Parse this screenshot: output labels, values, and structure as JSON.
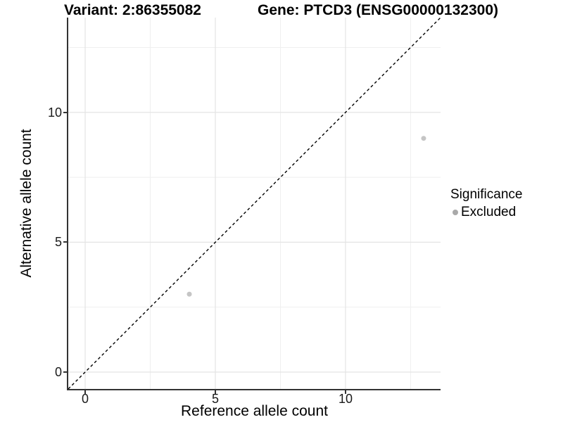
{
  "header": {
    "variant_title": "Variant: 2:86355082",
    "gene_title": "Gene: PTCD3 (ENSG00000132300)"
  },
  "legend": {
    "title": "Significance",
    "items": [
      {
        "label": "Excluded",
        "key_color": "#a9a9a9"
      }
    ]
  },
  "axes": {
    "x_title": "Reference allele count",
    "y_title": "Alternative allele count"
  },
  "colors": {
    "point": "#c5c5c5",
    "major_grid": "#e4e4e4",
    "minor_grid": "#efefef",
    "axis_line": "#333333",
    "identity_line": "#000000"
  },
  "chart_data": {
    "type": "scatter",
    "title": "Variant: 2:86355082  |  Gene: PTCD3 (ENSG00000132300)",
    "xlabel": "Reference allele count",
    "ylabel": "Alternative allele count",
    "xlim": [
      -0.65,
      13.65
    ],
    "ylim": [
      -0.65,
      13.65
    ],
    "x_ticks": [
      0,
      5,
      10
    ],
    "y_ticks": [
      0,
      5,
      10
    ],
    "x_minor_ticks": [
      2.5,
      7.5,
      12.5
    ],
    "y_minor_ticks": [
      2.5,
      7.5,
      12.5
    ],
    "grid": true,
    "identity_line": {
      "shown": true,
      "style": "dashed",
      "from": [
        -0.65,
        -0.65
      ],
      "to": [
        13.65,
        13.65
      ]
    },
    "legend_position": "right",
    "series": [
      {
        "name": "Excluded",
        "significance": "Excluded",
        "points": [
          {
            "x": 4,
            "y": 3
          },
          {
            "x": 13,
            "y": 9
          }
        ]
      }
    ]
  }
}
